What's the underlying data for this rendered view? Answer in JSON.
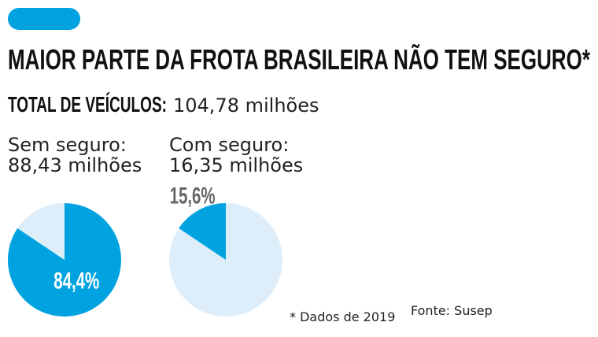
{
  "title": "MAIOR PARTE DA FROTA BRASILEIRA NÃO TEM SEGURO*",
  "total_label": "TOTAL DE VEÍCULOS:",
  "total_value": "104,78 milhões",
  "note": "* Dados de 2019",
  "source": "Fonte: Susep",
  "chart_data": [
    {
      "type": "pie",
      "title": "Sem seguro:",
      "subtitle": "88,43 milhões",
      "values": [
        84.4,
        15.6
      ],
      "value_labels": [
        "84,4%",
        null
      ],
      "colors": [
        "#00a3e0",
        "#ddeefa"
      ],
      "label_position": "inside",
      "label_color": "#ffffff"
    },
    {
      "type": "pie",
      "title": "Com seguro:",
      "subtitle": "16,35 milhões",
      "values": [
        84.4,
        15.6
      ],
      "value_labels": [
        null,
        "15,6%"
      ],
      "colors": [
        "#ddeefa",
        "#00a3e0"
      ],
      "label_position": "outside",
      "label_color": "#666666"
    }
  ]
}
